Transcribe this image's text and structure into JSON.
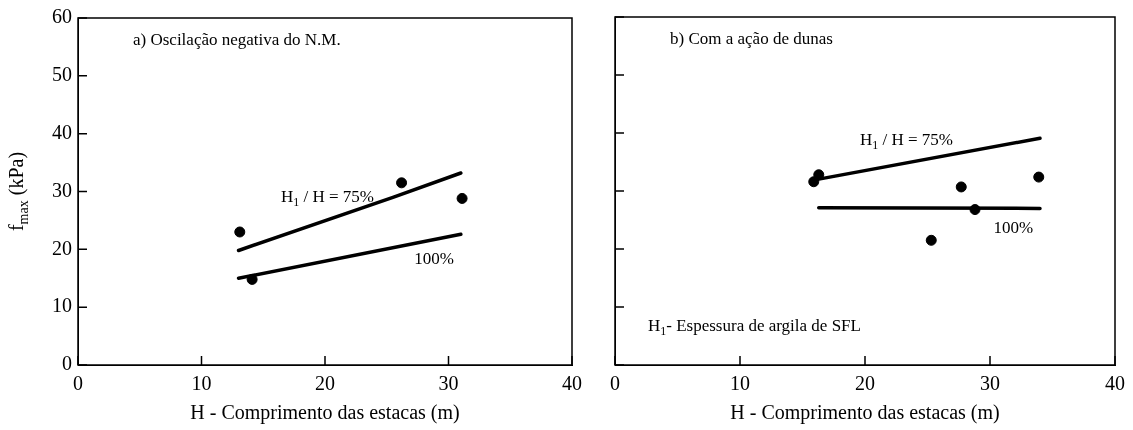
{
  "chart_data": [
    {
      "type": "scatter",
      "title": "a) Oscilação negativa do N.M.",
      "xlabel": "H - Comprimento das estacas (m)",
      "ylabel": "f$_{max}$ (kPa)",
      "xlim": [
        0,
        40
      ],
      "xticks": [
        0,
        10,
        20,
        30,
        40
      ],
      "ylim": [
        0,
        60
      ],
      "yticks": [
        0,
        10,
        20,
        30,
        40,
        50,
        60
      ],
      "grid": false,
      "marker": "circle",
      "series": [
        {
          "color": "#000000",
          "x": [
            13.1,
            14.1,
            26.2,
            31.1
          ],
          "values": [
            23,
            14.8,
            31.5,
            28.8
          ]
        },
        {
          "type": "line",
          "name": "H$_{1}$ / H = 75%",
          "color": "#000000",
          "marker": "none",
          "x": [
            13,
            25.5,
            31
          ],
          "values": [
            19.8,
            29,
            33.2
          ]
        },
        {
          "type": "line",
          "name": "100%",
          "color": "#000000",
          "marker": "none",
          "x": [
            13,
            31
          ],
          "values": [
            15,
            22.6
          ]
        }
      ]
    },
    {
      "type": "scatter",
      "title": "b) Com a ação de dunas",
      "xlabel": "H - Comprimento das estacas (m)",
      "xlim": [
        0,
        40
      ],
      "xticks": [
        0,
        10,
        20,
        30,
        40
      ],
      "ylim": [
        0,
        60
      ],
      "yticks": [
        0,
        10,
        20,
        30,
        40,
        50,
        60
      ],
      "tick_labels": "x",
      "grid": false,
      "marker": "circle",
      "series": [
        {
          "color": "#000000",
          "x": [
            15.9,
            16.3,
            25.3,
            27.7,
            28.8,
            33.9
          ],
          "values": [
            31.6,
            32.8,
            21.5,
            30.7,
            26.8,
            32.4
          ]
        },
        {
          "type": "line",
          "name": "H$_{1}$ / H = 75%",
          "color": "#000000",
          "marker": "none",
          "x": [
            16.2,
            34
          ],
          "values": [
            32,
            39.1
          ]
        },
        {
          "type": "line",
          "name": "100%",
          "color": "#000000",
          "marker": "none",
          "x": [
            16.3,
            34
          ],
          "values": [
            27.1,
            27
          ]
        }
      ],
      "annotations": [
        "H$_{1}$- Espessura de argila de SFL"
      ]
    }
  ]
}
